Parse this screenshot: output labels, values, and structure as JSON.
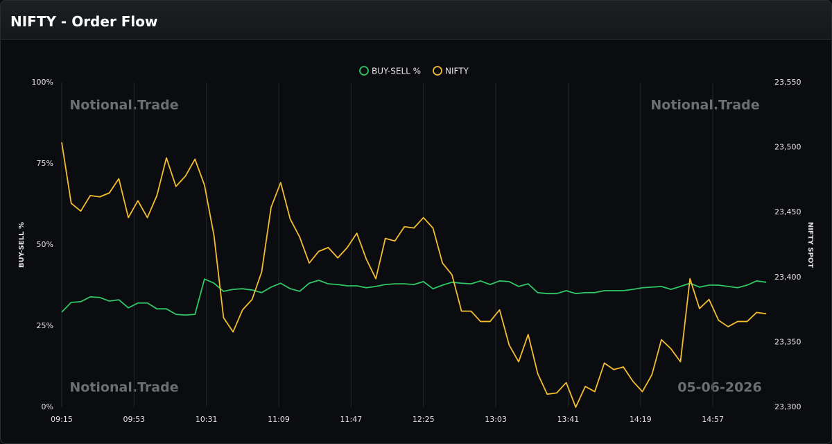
{
  "header": {
    "title": "NIFTY - Order Flow"
  },
  "watermarks": [
    "Notional.Trade",
    "Notional.Trade",
    "Notional.Trade",
    "05-06-2026"
  ],
  "chart_data": {
    "type": "line",
    "y_label": "BUY-SELL %",
    "y2_label": "NIFTY SPOT",
    "x": [
      555,
      560,
      565,
      570,
      575,
      580,
      585,
      590,
      595,
      600,
      605,
      610,
      615,
      620,
      625,
      630,
      635,
      640,
      645,
      650,
      655,
      660,
      665,
      670,
      675,
      680,
      685,
      690,
      695,
      700,
      705,
      710,
      715,
      720,
      725,
      730,
      735,
      740,
      745,
      750,
      755,
      760,
      765,
      770,
      775,
      780,
      785,
      790,
      795,
      800,
      805,
      810,
      815,
      820,
      825,
      830,
      835,
      840,
      845,
      850,
      855,
      860,
      865,
      870,
      875,
      880,
      885,
      890,
      895,
      900,
      905,
      910,
      915,
      920,
      925
    ],
    "xlim": [
      555,
      925
    ],
    "xticks": [
      {
        "value": 555,
        "label": "09:15"
      },
      {
        "value": 593,
        "label": "09:53"
      },
      {
        "value": 631,
        "label": "10:31"
      },
      {
        "value": 669,
        "label": "11:09"
      },
      {
        "value": 707,
        "label": "11:47"
      },
      {
        "value": 745,
        "label": "12:25"
      },
      {
        "value": 783,
        "label": "13:03"
      },
      {
        "value": 821,
        "label": "13:41"
      },
      {
        "value": 859,
        "label": "14:19"
      },
      {
        "value": 897,
        "label": "14:57"
      }
    ],
    "ylim": [
      0,
      100
    ],
    "yticks": [
      {
        "value": 0,
        "label": "0%"
      },
      {
        "value": 25,
        "label": "25%"
      },
      {
        "value": 50,
        "label": "50%"
      },
      {
        "value": 75,
        "label": "75%"
      },
      {
        "value": 100,
        "label": "100%"
      }
    ],
    "y2lim": [
      23300,
      23550
    ],
    "y2ticks": [
      {
        "value": 23300,
        "label": "23,300"
      },
      {
        "value": 23350,
        "label": "23,350"
      },
      {
        "value": 23400,
        "label": "23,400"
      },
      {
        "value": 23450,
        "label": "23,450"
      },
      {
        "value": 23500,
        "label": "23,500"
      },
      {
        "value": 23550,
        "label": "23,550"
      }
    ],
    "grid": "x",
    "legend": "top",
    "series": [
      {
        "name": "BUY-SELL %",
        "color": "#2ec866",
        "axis": "y",
        "values": [
          29.3,
          32.3,
          32.5,
          34.0,
          33.8,
          32.7,
          33.1,
          30.6,
          32.1,
          32.1,
          30.3,
          30.3,
          28.6,
          28.4,
          28.6,
          39.5,
          38.2,
          35.7,
          36.3,
          36.5,
          36.1,
          35.3,
          37.0,
          38.2,
          36.5,
          35.7,
          38.2,
          39.1,
          38.0,
          37.8,
          37.4,
          37.4,
          36.8,
          37.2,
          37.8,
          38.0,
          38.0,
          37.8,
          38.7,
          36.5,
          37.6,
          38.5,
          38.2,
          38.0,
          38.9,
          37.8,
          38.9,
          38.7,
          37.2,
          38.0,
          35.3,
          35.0,
          35.0,
          35.9,
          35.0,
          35.3,
          35.3,
          35.9,
          35.9,
          35.9,
          36.3,
          36.8,
          37.0,
          37.2,
          36.3,
          37.2,
          38.2,
          37.0,
          37.6,
          37.6,
          37.2,
          36.8,
          37.6,
          38.9,
          38.5
        ]
      },
      {
        "name": "NIFTY",
        "color": "#f5bd2f",
        "axis": "y2",
        "values": [
          23504,
          23457,
          23451,
          23463,
          23462,
          23465,
          23476,
          23446,
          23459,
          23446,
          23463,
          23492,
          23470,
          23478,
          23491,
          23471,
          23432,
          23369,
          23358,
          23375,
          23383,
          23404,
          23454,
          23473,
          23445,
          23431,
          23411,
          23420,
          23423,
          23415,
          23423,
          23434,
          23414,
          23399,
          23430,
          23428,
          23439,
          23438,
          23446,
          23438,
          23411,
          23402,
          23374,
          23374,
          23366,
          23366,
          23375,
          23348,
          23335,
          23356,
          23326,
          23310,
          23311,
          23319,
          23300,
          23316,
          23312,
          23334,
          23329,
          23331,
          23320,
          23312,
          23325,
          23352,
          23345,
          23335,
          23399,
          23376,
          23383,
          23367,
          23362,
          23366,
          23366,
          23373,
          23372
        ]
      }
    ]
  }
}
